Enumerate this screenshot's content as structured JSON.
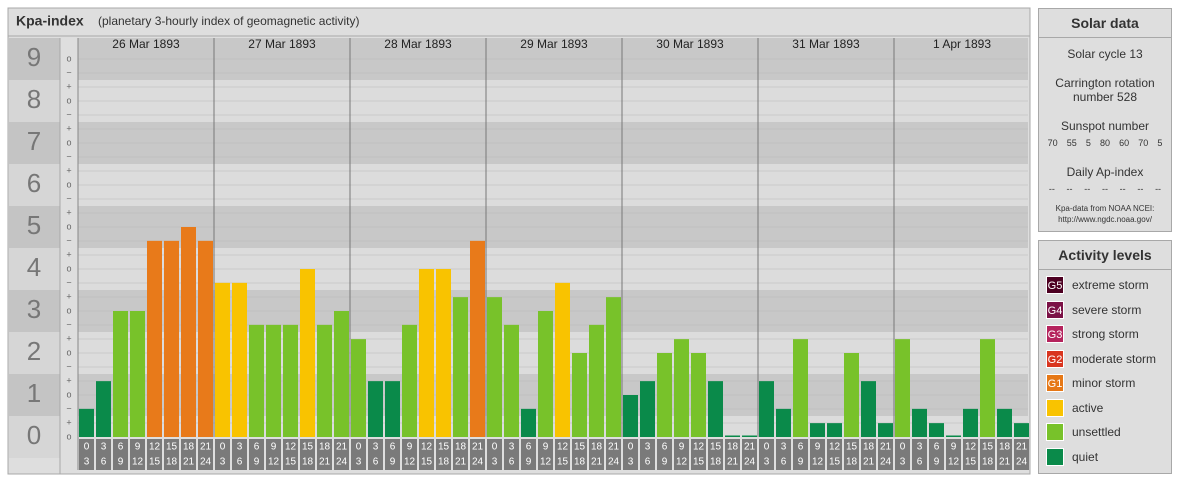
{
  "chart_data": {
    "type": "bar",
    "title": "Kpa-index",
    "subtitle": "(planetary 3-hourly index of geomagnetic activity)",
    "days": [
      "26 Mar 1893",
      "27 Mar 1893",
      "28 Mar 1893",
      "29 Mar 1893",
      "30 Mar 1893",
      "31 Mar 1893",
      "1 Apr 1893"
    ],
    "time_labels": [
      [
        "0",
        "3"
      ],
      [
        "3",
        "6"
      ],
      [
        "6",
        "9"
      ],
      [
        "9",
        "12"
      ],
      [
        "12",
        "15"
      ],
      [
        "15",
        "18"
      ],
      [
        "18",
        "21"
      ],
      [
        "21",
        "24"
      ]
    ],
    "values": [
      0.67,
      1.33,
      3,
      3,
      4.67,
      4.67,
      5,
      4.67,
      3.67,
      3.67,
      2.67,
      2.67,
      2.67,
      4,
      2.67,
      3,
      2.33,
      1.33,
      1.33,
      2.67,
      4,
      4,
      3.33,
      4.67,
      3.33,
      2.67,
      0.67,
      3,
      3.67,
      2,
      2.67,
      3.33,
      1,
      1.33,
      2,
      2.33,
      2,
      1.33,
      0,
      0,
      1.33,
      0.67,
      2.33,
      0.33,
      0.33,
      2,
      1.33,
      0.33,
      2.33,
      0.67,
      0.33,
      0,
      0.67,
      2.33,
      0.67,
      0.33
    ],
    "colors": [
      "#0a8a4a",
      "#0a8a4a",
      "#78c22a",
      "#78c22a",
      "#e87a1a",
      "#e87a1a",
      "#e87a1a",
      "#e87a1a",
      "#f9c300",
      "#f9c300",
      "#78c22a",
      "#78c22a",
      "#78c22a",
      "#f9c300",
      "#78c22a",
      "#78c22a",
      "#78c22a",
      "#0a8a4a",
      "#0a8a4a",
      "#78c22a",
      "#f9c300",
      "#f9c300",
      "#78c22a",
      "#e87a1a",
      "#78c22a",
      "#78c22a",
      "#0a8a4a",
      "#78c22a",
      "#f9c300",
      "#78c22a",
      "#78c22a",
      "#78c22a",
      "#0a8a4a",
      "#0a8a4a",
      "#78c22a",
      "#78c22a",
      "#78c22a",
      "#0a8a4a",
      "#0a8a4a",
      "#0a8a4a",
      "#0a8a4a",
      "#0a8a4a",
      "#78c22a",
      "#0a8a4a",
      "#0a8a4a",
      "#78c22a",
      "#0a8a4a",
      "#0a8a4a",
      "#78c22a",
      "#0a8a4a",
      "#0a8a4a",
      "#0a8a4a",
      "#0a8a4a",
      "#78c22a",
      "#0a8a4a",
      "#0a8a4a"
    ],
    "ylim": [
      0,
      9.5
    ],
    "yticks": [
      0,
      1,
      2,
      3,
      4,
      5,
      6,
      7,
      8,
      9
    ],
    "minor_tick_labels": [
      "−",
      "o",
      "+"
    ]
  },
  "solar_data": {
    "title": "Solar data",
    "cycle": "Solar cycle 13",
    "carrington": "Carrington rotation number 528",
    "sunspot_title": "Sunspot number",
    "sunspot": [
      70,
      55,
      5,
      80,
      60,
      70,
      5
    ],
    "ap_title": "Daily Ap-index",
    "ap": [
      "--",
      "--",
      "--",
      "--",
      "--",
      "--",
      "--"
    ],
    "source": "Kpa-data from NOAA NCEI:",
    "source_url": "http://www.ngdc.noaa.gov/"
  },
  "activity_levels": {
    "title": "Activity levels",
    "items": [
      {
        "badge": "G5",
        "label": "extreme storm",
        "color": "#4d0021"
      },
      {
        "badge": "G4",
        "label": "severe storm",
        "color": "#7b1146"
      },
      {
        "badge": "G3",
        "label": "strong storm",
        "color": "#b5235d"
      },
      {
        "badge": "G2",
        "label": "moderate storm",
        "color": "#d9351f"
      },
      {
        "badge": "G1",
        "label": "minor storm",
        "color": "#e67817"
      },
      {
        "badge": null,
        "label": "active",
        "color": "#f9c300"
      },
      {
        "badge": null,
        "label": "unsettled",
        "color": "#78c22a"
      },
      {
        "badge": null,
        "label": "quiet",
        "color": "#0a8a4a"
      }
    ]
  }
}
